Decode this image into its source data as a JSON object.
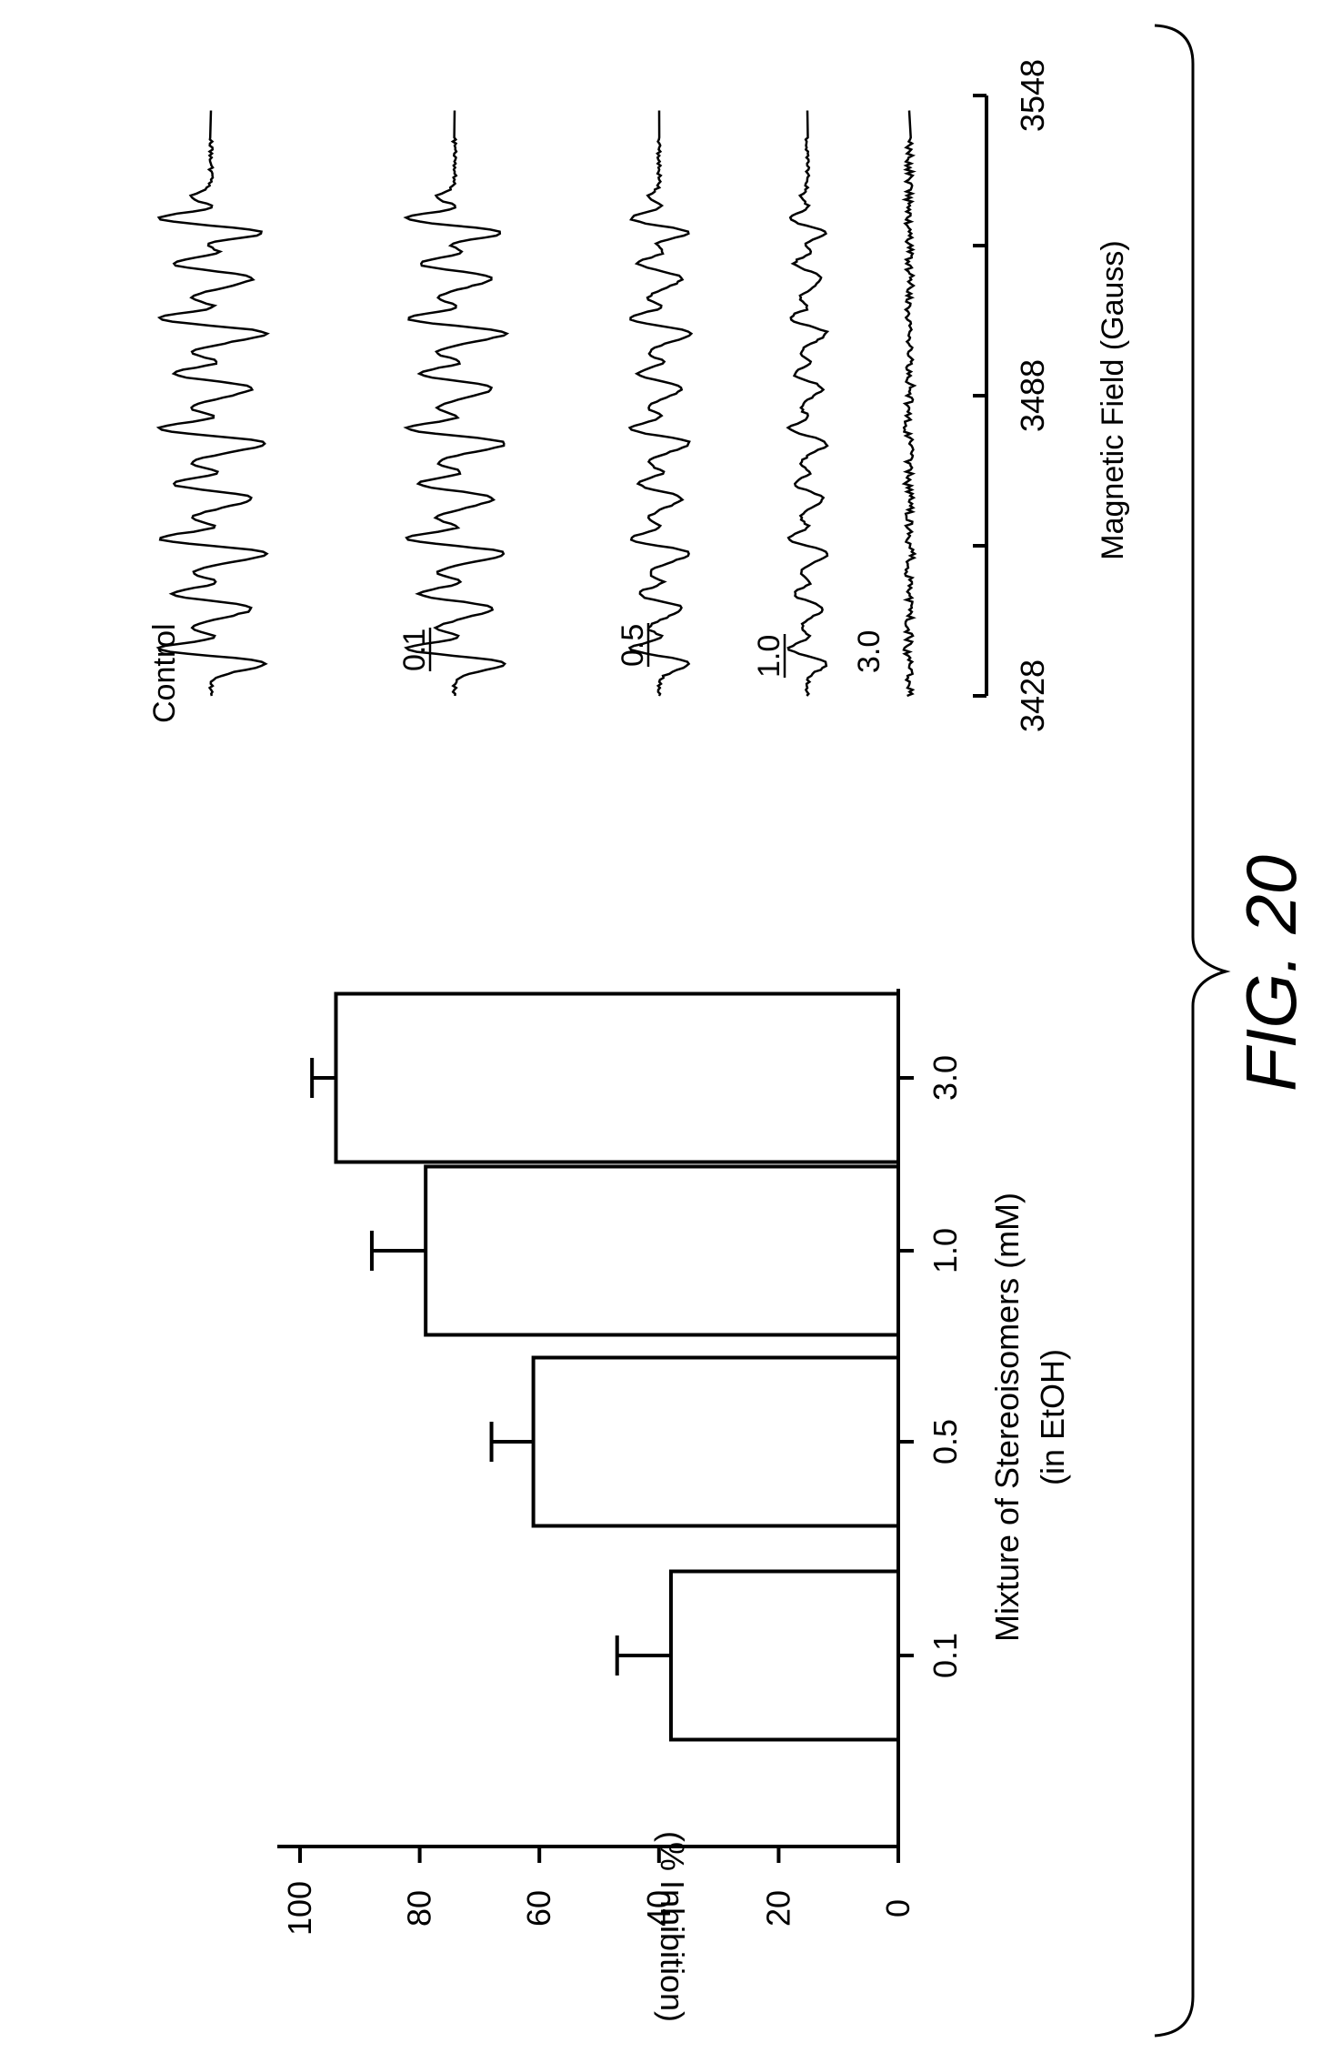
{
  "figure": {
    "label": "FIG. 20"
  },
  "chart_data": [
    {
      "type": "bar",
      "ylabel": "(% Inhibition)",
      "xlabel": "Mixture of Stereoisomers (mM)",
      "xlabel2": "(in EtOH)",
      "ylim": [
        0,
        100
      ],
      "yticks": [
        0,
        20,
        40,
        60,
        80,
        100
      ],
      "categories": [
        "0.1",
        "0.5",
        "1.0",
        "3.0"
      ],
      "values": [
        38,
        61,
        79,
        94
      ],
      "errors": [
        9,
        7,
        9,
        4
      ],
      "bar_color": "#ffffff",
      "stroke_color": "#000000"
    },
    {
      "type": "line",
      "xlabel": "Magnetic Field (Gauss)",
      "xlim": [
        3428,
        3548
      ],
      "xtick_labels": [
        "3428",
        "3488",
        "3548"
      ],
      "xticks": [
        3428,
        3458,
        3488,
        3518,
        3548
      ],
      "series": [
        {
          "name": "Control",
          "amplitude": 1.0
        },
        {
          "name": "0.1",
          "amplitude": 0.92
        },
        {
          "name": "0.5",
          "amplitude": 0.55
        },
        {
          "name": "1.0",
          "amplitude": 0.35
        },
        {
          "name": "3.0",
          "amplitude": 0.04
        }
      ]
    }
  ]
}
